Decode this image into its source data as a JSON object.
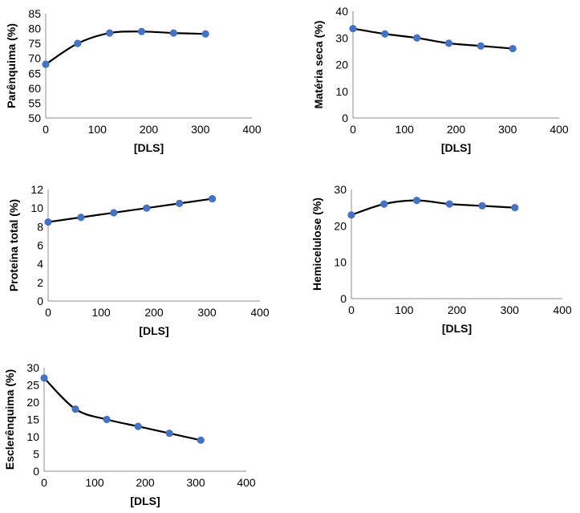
{
  "chart_data": [
    {
      "type": "scatter",
      "xlabel": "[DLS]",
      "ylabel": "Parênquima (%)",
      "xlim": [
        0,
        400
      ],
      "ylim": [
        50,
        85
      ],
      "xticks": [
        0,
        100,
        200,
        300,
        400
      ],
      "yticks": [
        50,
        55,
        60,
        65,
        70,
        75,
        80,
        85
      ],
      "grid": false,
      "marker_color": "#4472c4",
      "line_color": "#000000",
      "series": [
        {
          "x": [
            0,
            62,
            124,
            186,
            248,
            310
          ],
          "y": [
            68,
            75,
            78.5,
            79,
            78.5,
            78.2
          ]
        }
      ]
    },
    {
      "type": "scatter",
      "xlabel": "[DLS]",
      "ylabel": "Matéria seca (%)",
      "xlim": [
        0,
        400
      ],
      "ylim": [
        0,
        40
      ],
      "xticks": [
        0,
        100,
        200,
        300,
        400
      ],
      "yticks": [
        0,
        10,
        20,
        30,
        40
      ],
      "grid": false,
      "marker_color": "#4472c4",
      "line_color": "#000000",
      "series": [
        {
          "x": [
            0,
            62,
            124,
            186,
            248,
            310
          ],
          "y": [
            33.5,
            31.5,
            30,
            28,
            27,
            26
          ]
        }
      ]
    },
    {
      "type": "scatter",
      "xlabel": "[DLS]",
      "ylabel": "Proteína total (%)",
      "xlim": [
        0,
        400
      ],
      "ylim": [
        0,
        12
      ],
      "xticks": [
        0,
        100,
        200,
        300,
        400
      ],
      "yticks": [
        0,
        2,
        4,
        6,
        8,
        10,
        12
      ],
      "grid": false,
      "marker_color": "#4472c4",
      "line_color": "#000000",
      "series": [
        {
          "x": [
            0,
            62,
            124,
            186,
            248,
            310
          ],
          "y": [
            8.5,
            9,
            9.5,
            10,
            10.5,
            11
          ]
        }
      ]
    },
    {
      "type": "scatter",
      "xlabel": "[DLS]",
      "ylabel": "Hemicelulose (%)",
      "xlim": [
        0,
        400
      ],
      "ylim": [
        0,
        30
      ],
      "xticks": [
        0,
        100,
        200,
        300,
        400
      ],
      "yticks": [
        0,
        10,
        20,
        30
      ],
      "grid": false,
      "marker_color": "#4472c4",
      "line_color": "#000000",
      "series": [
        {
          "x": [
            0,
            62,
            124,
            186,
            248,
            310
          ],
          "y": [
            23,
            26,
            27,
            26,
            25.5,
            25
          ]
        }
      ]
    },
    {
      "type": "scatter",
      "xlabel": "[DLS]",
      "ylabel": "Esclerênquima (%)",
      "xlim": [
        0,
        400
      ],
      "ylim": [
        0,
        30
      ],
      "xticks": [
        0,
        100,
        200,
        300,
        400
      ],
      "yticks": [
        0,
        5,
        10,
        15,
        20,
        25,
        30
      ],
      "grid": false,
      "marker_color": "#4472c4",
      "line_color": "#000000",
      "series": [
        {
          "x": [
            0,
            62,
            124,
            186,
            248,
            310
          ],
          "y": [
            27,
            18,
            15,
            13,
            11,
            9
          ]
        }
      ]
    }
  ]
}
